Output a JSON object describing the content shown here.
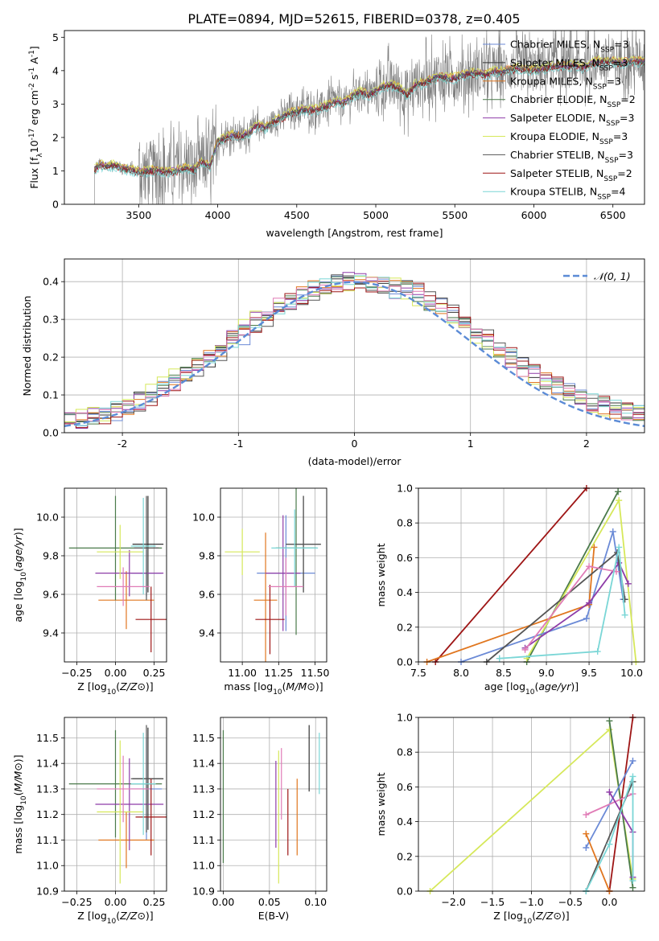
{
  "figure_title": "PLATE=0894, MJD=52615, FIBERID=0378, z=0.405",
  "colors": {
    "chabrier_miles": "#6b8ad6",
    "salpeter_miles": "#333333",
    "kroupa_miles": "#e0761f",
    "chabrier_elodie": "#4a7a4a",
    "salpeter_elodie": "#8e3ca8",
    "kroupa_elodie": "#d6e85a",
    "chabrier_stelib": "#555555",
    "salpeter_stelib": "#9e1515",
    "kroupa_stelib": "#7ad6d6",
    "gaussian": "#5b8bd6",
    "pink": "#e07bb6",
    "grid": "#b0b0b0"
  },
  "chart_data": [
    {
      "id": "spectrum",
      "type": "line",
      "title": "PLATE=0894, MJD=52615, FIBERID=0378, z=0.405",
      "xlabel": "wavelength [Angstrom, rest frame]",
      "ylabel_parts": [
        "Flux [f",
        "λ",
        "10",
        "-17",
        " erg cm",
        "-2",
        " s",
        "-1",
        " A",
        "-1",
        "]"
      ],
      "xlim": [
        3030,
        6700
      ],
      "ylim": [
        0,
        5.2
      ],
      "xticks": [
        3500,
        4000,
        4500,
        5000,
        5500,
        6000,
        6500
      ],
      "yticks": [
        0,
        1,
        2,
        3,
        4,
        5
      ],
      "grid": false,
      "legend_position": "top-right",
      "legend": [
        {
          "label": "Chabrier MILES, N",
          "sub": "SSP",
          "tail": "=3",
          "color_key": "chabrier_miles"
        },
        {
          "label": "Salpeter MILES, N",
          "sub": "SSP",
          "tail": "=3",
          "color_key": "salpeter_miles"
        },
        {
          "label": "Kroupa MILES, N",
          "sub": "SSP",
          "tail": "=3",
          "color_key": "kroupa_miles"
        },
        {
          "label": "Chabrier ELODIE, N",
          "sub": "SSP",
          "tail": "=2",
          "color_key": "chabrier_elodie"
        },
        {
          "label": "Salpeter ELODIE, N",
          "sub": "SSP",
          "tail": "=3",
          "color_key": "salpeter_elodie"
        },
        {
          "label": "Kroupa ELODIE, N",
          "sub": "SSP",
          "tail": "=3",
          "color_key": "kroupa_elodie"
        },
        {
          "label": "Chabrier STELIB, N",
          "sub": "SSP",
          "tail": "=3",
          "color_key": "chabrier_stelib"
        },
        {
          "label": "Salpeter STELIB, N",
          "sub": "SSP",
          "tail": "=2",
          "color_key": "salpeter_stelib"
        },
        {
          "label": "Kroupa STELIB, N",
          "sub": "SSP",
          "tail": "=4",
          "color_key": "kroupa_stelib"
        }
      ],
      "model_wavelength": [
        3220,
        3250,
        3300,
        3350,
        3400,
        3450,
        3500,
        3550,
        3600,
        3650,
        3700,
        3750,
        3800,
        3850,
        3900,
        3950,
        4000,
        4050,
        4100,
        4150,
        4200,
        4250,
        4300,
        4350,
        4400,
        4450,
        4500,
        4550,
        4600,
        4650,
        4700,
        4750,
        4800,
        4850,
        4900,
        4950,
        5000,
        5050,
        5100,
        5150,
        5200,
        5250,
        5300,
        5350,
        5400,
        5450,
        5500,
        5550,
        5600,
        5650,
        5700,
        5750,
        5800,
        5850,
        5900,
        5950,
        6000,
        6050,
        6100,
        6150,
        6200,
        6250,
        6300,
        6350,
        6400,
        6450,
        6500,
        6550,
        6600
      ],
      "model_flux": [
        1.05,
        1.2,
        1.15,
        1.2,
        1.1,
        1.05,
        1.0,
        1.0,
        1.05,
        1.0,
        1.0,
        1.05,
        1.1,
        1.05,
        1.3,
        1.15,
        1.9,
        2.0,
        2.1,
        2.05,
        2.15,
        2.4,
        2.3,
        2.5,
        2.6,
        2.75,
        2.8,
        2.85,
        2.85,
        2.9,
        3.0,
        3.1,
        3.05,
        3.25,
        3.4,
        3.3,
        3.4,
        3.55,
        3.6,
        3.5,
        3.3,
        3.6,
        3.65,
        3.75,
        3.85,
        3.8,
        3.8,
        3.9,
        3.95,
        3.95,
        3.9,
        4.0,
        4.0,
        4.05,
        4.1,
        4.05,
        4.05,
        4.05,
        4.15,
        4.15,
        4.15,
        4.2,
        4.1,
        4.2,
        4.3,
        4.3,
        4.3,
        4.25,
        4.3
      ]
    },
    {
      "id": "residual_histogram",
      "type": "histogram",
      "xlabel": "(data-model)/error",
      "ylabel": "Normed distribution",
      "xlim": [
        -2.5,
        2.5
      ],
      "ylim": [
        0,
        0.46
      ],
      "xticks": [
        -2,
        -1,
        0,
        1,
        2
      ],
      "yticks": [
        0.0,
        0.1,
        0.2,
        0.3,
        0.4
      ],
      "grid": true,
      "legend_position": "top-right",
      "legend": [
        {
          "label": "𝒩(0, 1)",
          "color_key": "gaussian",
          "style": "dashed"
        }
      ],
      "bin_width": 0.1,
      "bin_start": -2.5,
      "base_values": [
        0.02,
        0.025,
        0.03,
        0.04,
        0.05,
        0.055,
        0.06,
        0.06,
        0.07,
        0.085,
        0.1,
        0.12,
        0.13,
        0.15,
        0.17,
        0.19,
        0.2,
        0.21,
        0.22,
        0.24,
        0.25,
        0.26,
        0.28,
        0.29,
        0.31,
        0.33,
        0.34,
        0.35,
        0.36,
        0.37,
        0.38,
        0.38,
        0.37,
        0.375,
        0.37,
        0.39,
        0.4,
        0.39,
        0.38,
        0.37,
        0.36,
        0.36,
        0.35,
        0.35,
        0.33,
        0.32,
        0.31,
        0.3,
        0.28,
        0.27,
        0.26,
        0.24,
        0.22,
        0.2,
        0.19,
        0.17,
        0.16,
        0.15,
        0.13,
        0.12,
        0.11,
        0.1,
        0.09,
        0.08,
        0.07,
        0.06,
        0.055,
        0.05,
        0.045,
        0.04,
        0.035,
        0.03,
        0.028,
        0.025,
        0.022,
        0.02,
        0.02,
        0.018,
        0.017,
        0.016,
        0.015,
        0.015,
        0.014,
        0.013,
        0.012,
        0.012,
        0.011,
        0.01,
        0.01,
        0.01,
        0.01,
        0.01,
        0.01,
        0.01,
        0.01,
        0.01,
        0.01,
        0.01,
        0.01,
        0.01
      ],
      "series_keys": [
        "chabrier_miles",
        "salpeter_miles",
        "kroupa_miles",
        "chabrier_elodie",
        "salpeter_elodie",
        "kroupa_elodie",
        "chabrier_stelib",
        "salpeter_stelib",
        "kroupa_stelib",
        "pink"
      ]
    },
    {
      "id": "age_vs_Z",
      "type": "errorbar",
      "xlabel": "Z [log10(Z/Z⊙)]",
      "ylabel": "age [log10(age/yr)]",
      "xlim": [
        -0.33,
        0.33
      ],
      "ylim": [
        9.25,
        10.15
      ],
      "xticks": [
        -0.25,
        0.0,
        0.25
      ],
      "xticklabels": [
        "−0.25",
        "0.00",
        "0.25"
      ],
      "yticks": [
        9.4,
        9.6,
        9.8,
        10.0
      ],
      "grid": true,
      "points": [
        {
          "x": 0.2,
          "xerr": 0.1,
          "y": 9.71,
          "yerr": 0.12,
          "color_key": "chabrier_miles"
        },
        {
          "x": 0.21,
          "xerr": 0.1,
          "y": 9.86,
          "yerr": 0.25,
          "color_key": "salpeter_miles"
        },
        {
          "x": 0.07,
          "xerr": 0.18,
          "y": 9.57,
          "yerr": 0.15,
          "color_key": "kroupa_miles"
        },
        {
          "x": 0.0,
          "xerr": 0.3,
          "y": 9.84,
          "yerr": 0.27,
          "color_key": "chabrier_elodie"
        },
        {
          "x": 0.09,
          "xerr": 0.22,
          "y": 9.71,
          "yerr": 0.12,
          "color_key": "salpeter_elodie"
        },
        {
          "x": 0.03,
          "xerr": 0.15,
          "y": 9.82,
          "yerr": 0.14,
          "color_key": "kroupa_elodie"
        },
        {
          "x": 0.2,
          "xerr": 0.08,
          "y": 9.84,
          "yerr": 0.27,
          "color_key": "chabrier_stelib"
        },
        {
          "x": 0.23,
          "xerr": 0.1,
          "y": 9.47,
          "yerr": 0.17,
          "color_key": "salpeter_stelib"
        },
        {
          "x": 0.18,
          "xerr": 0.08,
          "y": 9.85,
          "yerr": 0.25,
          "color_key": "kroupa_stelib"
        },
        {
          "x": 0.05,
          "xerr": 0.17,
          "y": 9.64,
          "yerr": 0.1,
          "color_key": "pink"
        }
      ]
    },
    {
      "id": "age_vs_mass",
      "type": "errorbar",
      "xlabel": "mass [log10(M/M⊙)]",
      "ylabel": "",
      "xlim": [
        10.85,
        11.58
      ],
      "ylim": [
        9.25,
        10.15
      ],
      "xticks": [
        11.0,
        11.25,
        11.5
      ],
      "xticklabels": [
        "11.00",
        "11.25",
        "11.50"
      ],
      "yticks": [
        9.4,
        9.6,
        9.8,
        10.0
      ],
      "grid": true,
      "points": [
        {
          "x": 11.3,
          "xerr": 0.2,
          "y": 9.71,
          "yerr": 0.3,
          "color_key": "chabrier_miles"
        },
        {
          "x": 11.42,
          "xerr": 0.12,
          "y": 9.86,
          "yerr": 0.25,
          "color_key": "salpeter_miles"
        },
        {
          "x": 11.16,
          "xerr": 0.08,
          "y": 9.57,
          "yerr": 0.35,
          "color_key": "kroupa_miles"
        },
        {
          "x": 11.37,
          "xerr": 0.14,
          "y": 9.84,
          "yerr": 0.45,
          "color_key": "chabrier_elodie"
        },
        {
          "x": 11.28,
          "xerr": 0.12,
          "y": 9.71,
          "yerr": 0.3,
          "color_key": "salpeter_elodie"
        },
        {
          "x": 11.0,
          "xerr": 0.12,
          "y": 9.82,
          "yerr": 0.12,
          "color_key": "kroupa_elodie"
        },
        {
          "x": 11.42,
          "xerr": 0.12,
          "y": 9.86,
          "yerr": 0.25,
          "color_key": "chabrier_stelib"
        },
        {
          "x": 11.19,
          "xerr": 0.1,
          "y": 9.47,
          "yerr": 0.18,
          "color_key": "salpeter_stelib"
        },
        {
          "x": 11.36,
          "xerr": 0.16,
          "y": 9.84,
          "yerr": 0.2,
          "color_key": "kroupa_stelib"
        },
        {
          "x": 11.3,
          "xerr": 0.12,
          "y": 9.64,
          "yerr": 0.15,
          "color_key": "pink"
        }
      ]
    },
    {
      "id": "massweight_vs_age",
      "type": "line",
      "xlabel": "age [log10(age/yr)]",
      "ylabel": "mass weight",
      "xlim": [
        7.5,
        10.15
      ],
      "ylim": [
        0,
        1
      ],
      "xticks": [
        7.5,
        8.0,
        8.5,
        9.0,
        9.5,
        10.0
      ],
      "yticks": [
        0.0,
        0.2,
        0.4,
        0.6,
        0.8,
        1.0
      ],
      "grid": true,
      "series": [
        {
          "color_key": "salpeter_stelib",
          "x": [
            7.7,
            9.47
          ],
          "y": [
            0.0,
            1.0
          ]
        },
        {
          "color_key": "chabrier_elodie",
          "x": [
            8.77,
            9.84
          ],
          "y": [
            0.0,
            0.98
          ]
        },
        {
          "color_key": "kroupa_elodie",
          "x": [
            8.77,
            9.85,
            10.05
          ],
          "y": [
            0.02,
            0.93,
            0.0
          ]
        },
        {
          "color_key": "chabrier_miles",
          "x": [
            8.0,
            9.47,
            9.78,
            9.9
          ],
          "y": [
            0.0,
            0.25,
            0.75,
            0.36
          ]
        },
        {
          "color_key": "kroupa_miles",
          "x": [
            7.6,
            9.5,
            9.56
          ],
          "y": [
            0.0,
            0.33,
            0.66
          ]
        },
        {
          "color_key": "salpeter_elodie",
          "x": [
            8.75,
            9.5,
            9.85,
            9.96
          ],
          "y": [
            0.08,
            0.34,
            0.57,
            0.45
          ]
        },
        {
          "color_key": "chabrier_stelib",
          "x": [
            8.3,
            9.83,
            9.92
          ],
          "y": [
            0.0,
            0.63,
            0.36
          ]
        },
        {
          "color_key": "pink",
          "x": [
            8.75,
            9.5,
            9.82
          ],
          "y": [
            0.07,
            0.55,
            0.52
          ]
        },
        {
          "color_key": "kroupa_stelib",
          "x": [
            8.45,
            9.6,
            9.85,
            9.92
          ],
          "y": [
            0.02,
            0.06,
            0.66,
            0.27
          ]
        }
      ]
    },
    {
      "id": "mass_vs_Z",
      "type": "errorbar",
      "xlabel": "Z [log10(Z/Z⊙)]",
      "ylabel": "mass [log10(M/M⊙)]",
      "xlim": [
        -0.33,
        0.33
      ],
      "ylim": [
        10.9,
        11.58
      ],
      "xticks": [
        -0.25,
        0.0,
        0.25
      ],
      "xticklabels": [
        "−0.25",
        "0.00",
        "0.25"
      ],
      "yticks": [
        10.9,
        11.0,
        11.1,
        11.2,
        11.3,
        11.4,
        11.5
      ],
      "grid": true,
      "points": [
        {
          "x": 0.2,
          "xerr": 0.1,
          "y": 11.3,
          "yerr": 0.2,
          "color_key": "chabrier_miles"
        },
        {
          "x": 0.21,
          "xerr": 0.1,
          "y": 11.34,
          "yerr": 0.2,
          "color_key": "salpeter_miles"
        },
        {
          "x": 0.07,
          "xerr": 0.18,
          "y": 11.1,
          "yerr": 0.11,
          "color_key": "kroupa_miles"
        },
        {
          "x": 0.0,
          "xerr": 0.3,
          "y": 11.32,
          "yerr": 0.21,
          "color_key": "chabrier_elodie"
        },
        {
          "x": 0.09,
          "xerr": 0.22,
          "y": 11.24,
          "yerr": 0.18,
          "color_key": "salpeter_elodie"
        },
        {
          "x": 0.03,
          "xerr": 0.15,
          "y": 11.21,
          "yerr": 0.28,
          "color_key": "kroupa_elodie"
        },
        {
          "x": 0.2,
          "xerr": 0.1,
          "y": 11.34,
          "yerr": 0.21,
          "color_key": "chabrier_stelib"
        },
        {
          "x": 0.23,
          "xerr": 0.1,
          "y": 11.19,
          "yerr": 0.15,
          "color_key": "salpeter_stelib"
        },
        {
          "x": 0.18,
          "xerr": 0.08,
          "y": 11.32,
          "yerr": 0.2,
          "color_key": "kroupa_stelib"
        },
        {
          "x": 0.05,
          "xerr": 0.17,
          "y": 11.3,
          "yerr": 0.13,
          "color_key": "pink"
        }
      ]
    },
    {
      "id": "mass_vs_EBV",
      "type": "errorbar",
      "xlabel": "E(B-V)",
      "ylabel": "",
      "xlim": [
        -0.003,
        0.112
      ],
      "ylim": [
        10.9,
        11.58
      ],
      "xticks": [
        0.0,
        0.05,
        0.1
      ],
      "xticklabels": [
        "0.00",
        "0.05",
        "0.10"
      ],
      "yticks": [
        10.9,
        11.0,
        11.1,
        11.2,
        11.3,
        11.4,
        11.5
      ],
      "grid": true,
      "points": [
        {
          "x": 0.0,
          "xerr": 0,
          "y": 11.27,
          "yerr": 0.26,
          "color_key": "chabrier_elodie"
        },
        {
          "x": 0.057,
          "xerr": 0,
          "y": 11.24,
          "yerr": 0.17,
          "color_key": "salpeter_elodie"
        },
        {
          "x": 0.06,
          "xerr": 0,
          "y": 11.19,
          "yerr": 0.26,
          "color_key": "kroupa_elodie"
        },
        {
          "x": 0.063,
          "xerr": 0,
          "y": 11.32,
          "yerr": 0.14,
          "color_key": "pink"
        },
        {
          "x": 0.07,
          "xerr": 0,
          "y": 11.17,
          "yerr": 0.13,
          "color_key": "salpeter_stelib"
        },
        {
          "x": 0.08,
          "xerr": 0,
          "y": 11.19,
          "yerr": 0.15,
          "color_key": "kroupa_miles"
        },
        {
          "x": 0.093,
          "xerr": 0,
          "y": 11.42,
          "yerr": 0.13,
          "color_key": "salpeter_miles"
        },
        {
          "x": 0.104,
          "xerr": 0,
          "y": 11.4,
          "yerr": 0.12,
          "color_key": "kroupa_stelib"
        }
      ]
    },
    {
      "id": "massweight_vs_Z",
      "type": "line",
      "xlabel": "Z [log10(Z/Z⊙)]",
      "ylabel": "mass weight",
      "xlim": [
        -2.45,
        0.45
      ],
      "ylim": [
        0,
        1
      ],
      "xticks": [
        -2.0,
        -1.5,
        -1.0,
        -0.5,
        0.0
      ],
      "xticklabels": [
        "−2.0",
        "−1.5",
        "−1.0",
        "−0.5",
        "0.0"
      ],
      "yticks": [
        0.0,
        0.2,
        0.4,
        0.6,
        0.8,
        1.0
      ],
      "grid": true,
      "series": [
        {
          "color_key": "kroupa_elodie",
          "x": [
            -2.3,
            0.0,
            0.3
          ],
          "y": [
            0.0,
            0.93,
            0.07
          ]
        },
        {
          "color_key": "chabrier_elodie",
          "x": [
            0.0,
            0.3
          ],
          "y": [
            0.98,
            0.02
          ]
        },
        {
          "color_key": "salpeter_stelib",
          "x": [
            0.0,
            0.3
          ],
          "y": [
            0.0,
            1.0
          ]
        },
        {
          "color_key": "chabrier_miles",
          "x": [
            -0.3,
            0.3
          ],
          "y": [
            0.25,
            0.75
          ]
        },
        {
          "color_key": "kroupa_miles",
          "x": [
            -0.3,
            0.0
          ],
          "y": [
            0.33,
            0.0
          ]
        },
        {
          "color_key": "pink",
          "x": [
            -0.3,
            0.3
          ],
          "y": [
            0.44,
            0.56
          ]
        },
        {
          "color_key": "salpeter_elodie",
          "x": [
            0.0,
            0.3,
            0.3
          ],
          "y": [
            0.57,
            0.34,
            0.08
          ]
        },
        {
          "color_key": "chabrier_stelib",
          "x": [
            -0.3,
            0.3
          ],
          "y": [
            0.0,
            0.63
          ]
        },
        {
          "color_key": "kroupa_stelib",
          "x": [
            -0.3,
            0.0,
            0.3,
            0.3
          ],
          "y": [
            0.0,
            0.27,
            0.66,
            0.06
          ]
        }
      ]
    }
  ]
}
